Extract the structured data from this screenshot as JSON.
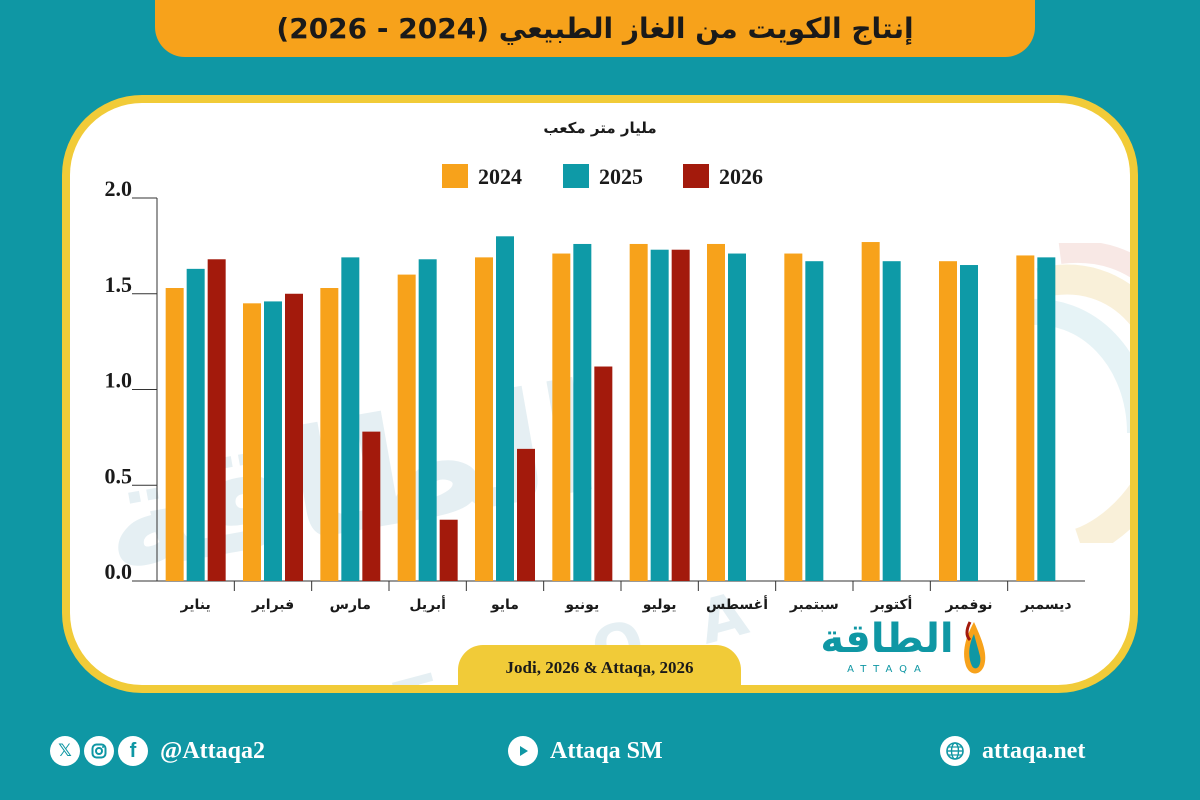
{
  "header": {
    "title": "إنتاج الكويت من الغاز الطبيعي (2024 - 2026)"
  },
  "source": {
    "label": "Jodi, 2026 & Attaqa, 2026"
  },
  "brand": {
    "arabic": "الطاقة",
    "english": "ATTAQA"
  },
  "footer": {
    "social_handle": "@Attaqa2",
    "youtube_label": "Attaqa SM",
    "website": "attaqa.net",
    "icons": [
      "x-icon",
      "instagram-icon",
      "facebook-icon",
      "youtube-icon",
      "globe-icon"
    ]
  },
  "colors": {
    "background": "#0f97a4",
    "frame": "#f1cb38",
    "title_bar": "#f7a21b",
    "series_2024": "#f7a21b",
    "series_2025": "#0e9aa7",
    "series_2026": "#a31a0c"
  },
  "chart_data": {
    "type": "bar",
    "title": "",
    "unit_label": "مليار متر مكعب",
    "xlabel": "",
    "ylabel": "مليار متر مكعب",
    "ylim": [
      0,
      2.0
    ],
    "yticks": [
      "0.0",
      "0.5",
      "1.0",
      "1.5",
      "2.0"
    ],
    "grid": false,
    "legend_position": "top-center",
    "categories": [
      "يناير",
      "فبراير",
      "مارس",
      "أبريل",
      "مايو",
      "يونيو",
      "يوليو",
      "أغسطس",
      "سبتمبر",
      "أكتوبر",
      "نوفمبر",
      "ديسمبر"
    ],
    "series": [
      {
        "name": "2024",
        "color": "#f7a21b",
        "values": [
          1.53,
          1.45,
          1.53,
          1.6,
          1.69,
          1.71,
          1.76,
          1.76,
          1.71,
          1.77,
          1.67,
          1.7
        ]
      },
      {
        "name": "2025",
        "color": "#0e9aa7",
        "values": [
          1.63,
          1.46,
          1.69,
          1.68,
          1.8,
          1.76,
          1.73,
          1.71,
          1.67,
          1.67,
          1.65,
          1.69
        ]
      },
      {
        "name": "2026",
        "color": "#a31a0c",
        "values": [
          1.68,
          1.5,
          0.78,
          0.32,
          0.69,
          1.12,
          1.73,
          null,
          null,
          null,
          null,
          null
        ]
      }
    ]
  }
}
